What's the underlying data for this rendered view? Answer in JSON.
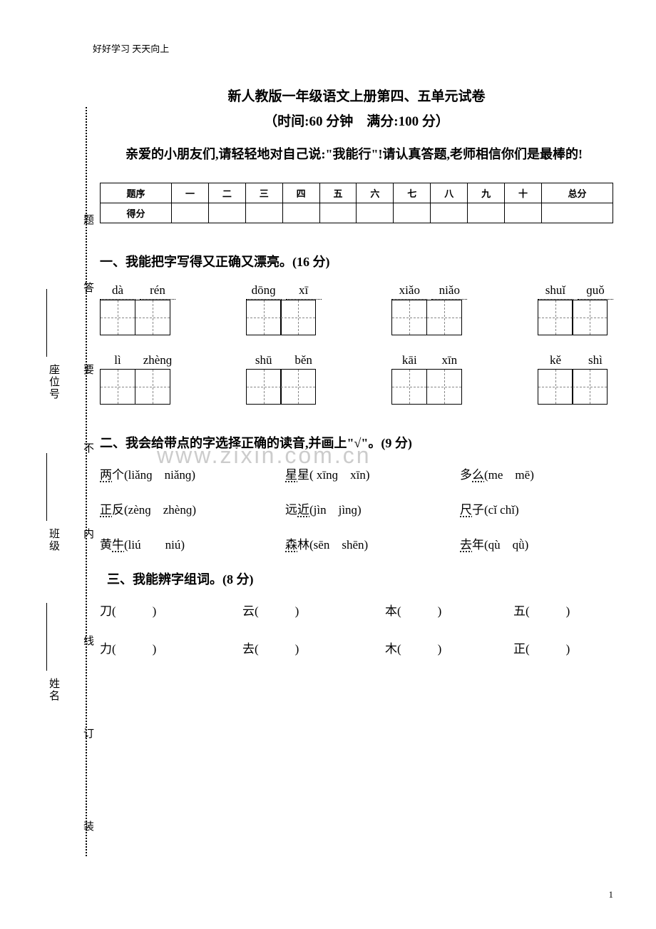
{
  "header": "好好学习 天天向上",
  "title": "新人教版一年级语文上册第四、五单元试卷",
  "subtitle": "（时间:60 分钟　满分:100 分）",
  "intro": "亲爱的小朋友们,请轻轻地对自己说:\"我能行\"!请认真答题,老师相信你们是最棒的!",
  "binding": {
    "zhuang": "装",
    "ding": "订",
    "xian": "线",
    "nei": "内",
    "bu": "不",
    "yao": "要",
    "da": "答",
    "ti": "题",
    "xingming": "姓名",
    "banji": "班级",
    "zuoweihao": "座位号"
  },
  "score_table": {
    "row1": [
      "题序",
      "一",
      "二",
      "三",
      "四",
      "五",
      "六",
      "七",
      "八",
      "九",
      "十",
      "总分"
    ],
    "row2_label": "得分"
  },
  "q1": {
    "title": "一、我能把字写得又正确又漂亮。(16 分)",
    "row1": [
      {
        "a": "dà",
        "b": "rén",
        "dotted": true
      },
      {
        "a": "dōnɡ",
        "b": "xī",
        "dotted": true
      },
      {
        "a": "xiǎo",
        "b": "niǎo",
        "dotted": true
      },
      {
        "a": "shuǐ",
        "b": "ɡuǒ",
        "dotted": true
      }
    ],
    "row2": [
      {
        "a": "lì",
        "b": "zhènɡ",
        "dotted": false
      },
      {
        "a": "shū",
        "b": "běn",
        "dotted": false
      },
      {
        "a": "kāi",
        "b": "xīn",
        "dotted": false
      },
      {
        "a": "kě",
        "b": "shì",
        "dotted": false
      }
    ]
  },
  "watermark": "www.zixin.com.cn",
  "q2": {
    "title": "二、我会给带点的字选择正确的读音,并画上\"√\"。(9 分)",
    "rows": [
      [
        {
          "ch": "两",
          "rest": "个",
          "p": "(liǎnɡ　niǎnɡ)"
        },
        {
          "ch": "星",
          "rest": "星",
          "p": "( xīnɡ　xīn)"
        },
        {
          "ch": "",
          "rest": "多",
          "ch2": "么",
          "p": "(me　mē)"
        }
      ],
      [
        {
          "ch": "正",
          "rest": "反",
          "p": "(zènɡ　zhènɡ)"
        },
        {
          "ch": "",
          "rest": "远",
          "ch2": "近",
          "p": "(jìn　jìnɡ)"
        },
        {
          "ch": "尺",
          "rest": "子",
          "p": "(cǐ chǐ)"
        }
      ],
      [
        {
          "ch": "",
          "rest": "黄",
          "ch2": "牛",
          "p": "(liú　　niú)"
        },
        {
          "ch": "森",
          "rest": "林",
          "p": "(sēn　shēn)"
        },
        {
          "ch": "去",
          "rest": "年",
          "p": "(qù　qǜ)"
        }
      ]
    ]
  },
  "q3": {
    "title": "三、我能辨字组词。(8 分)",
    "rows": [
      [
        "刀(　　　)",
        "云(　　　)",
        "本(　　　)",
        "五(　　　)"
      ],
      [
        "力(　　　)",
        "去(　　　)",
        "木(　　　)",
        "正(　　　)"
      ]
    ]
  },
  "page_num": "1"
}
